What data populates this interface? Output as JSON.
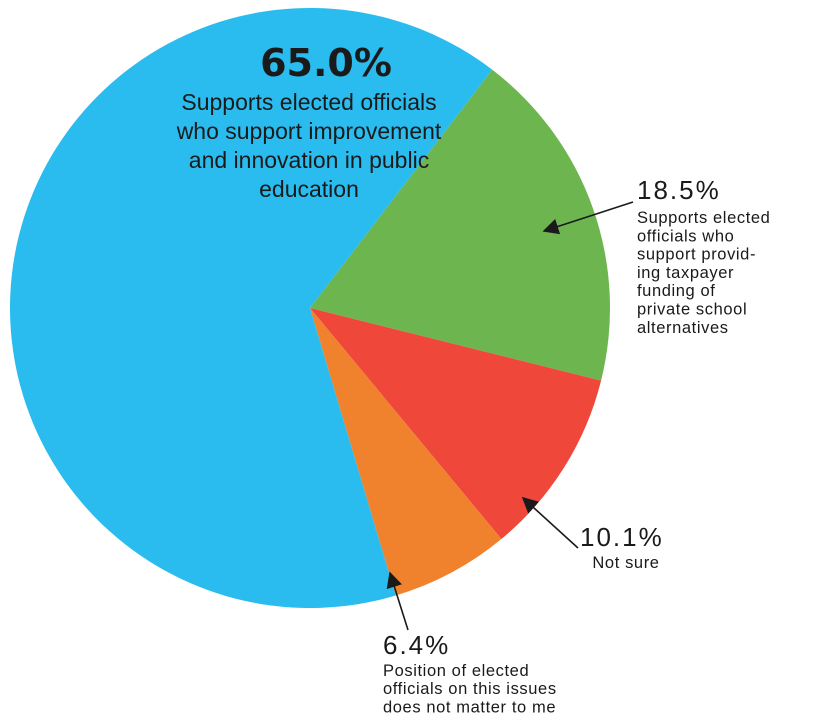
{
  "chart_data": {
    "type": "pie",
    "slices": [
      {
        "value": 18.5,
        "color": "#6db54f",
        "pct_label": "18.5%",
        "description": [
          "Supports elected",
          "officials who",
          "support provid-",
          "ing taxpayer",
          "funding of",
          "private school",
          "alternatives"
        ]
      },
      {
        "value": 10.1,
        "color": "#ef473a",
        "pct_label": "10.1%",
        "description": [
          "Not sure"
        ]
      },
      {
        "value": 6.4,
        "color": "#f0812d",
        "pct_label": "6.4%",
        "description": [
          "Position of elected",
          "officials on this issues",
          "does not matter to me"
        ]
      },
      {
        "value": 65.0,
        "color": "#2abcee",
        "pct_label": "65.0%",
        "description": [
          "Supports elected officials",
          "who support improvement",
          "and innovation in public",
          "education"
        ]
      }
    ]
  }
}
